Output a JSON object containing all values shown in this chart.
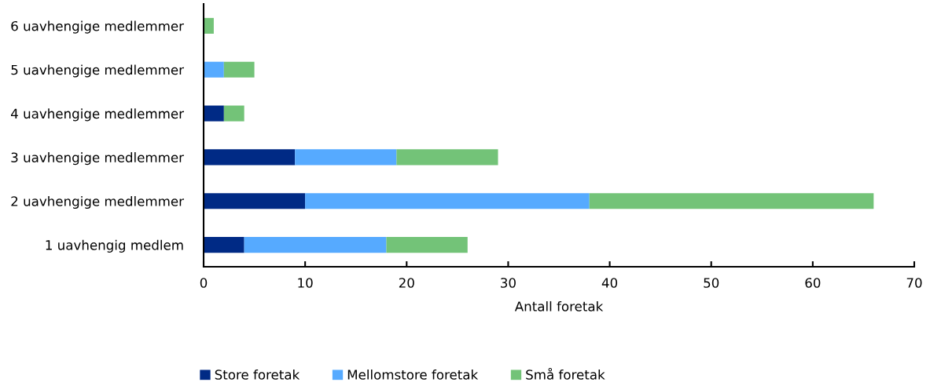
{
  "chart_data": {
    "type": "bar",
    "orientation": "horizontal",
    "stacked": true,
    "categories": [
      "6 uavhengige medlemmer",
      "5 uavhengige medlemmer",
      "4 uavhengige medlemmer",
      "3 uavhengige medlemmer",
      "2 uavhengige medlemmer",
      "1 uavhengig medlem"
    ],
    "series": [
      {
        "name": "Store foretak",
        "color": "#002a85",
        "values": [
          0,
          0,
          2,
          9,
          10,
          4
        ]
      },
      {
        "name": "Mellomstore foretak",
        "color": "#56aaff",
        "values": [
          0,
          2,
          0,
          10,
          28,
          14
        ]
      },
      {
        "name": "Små foretak",
        "color": "#73c378",
        "values": [
          1,
          3,
          2,
          10,
          28,
          8
        ]
      }
    ],
    "xlabel": "Antall foretak",
    "xlim": [
      0,
      70
    ],
    "xticks": [
      0,
      10,
      20,
      30,
      40,
      50,
      60,
      70
    ],
    "grid": false,
    "legend": "bottom"
  }
}
